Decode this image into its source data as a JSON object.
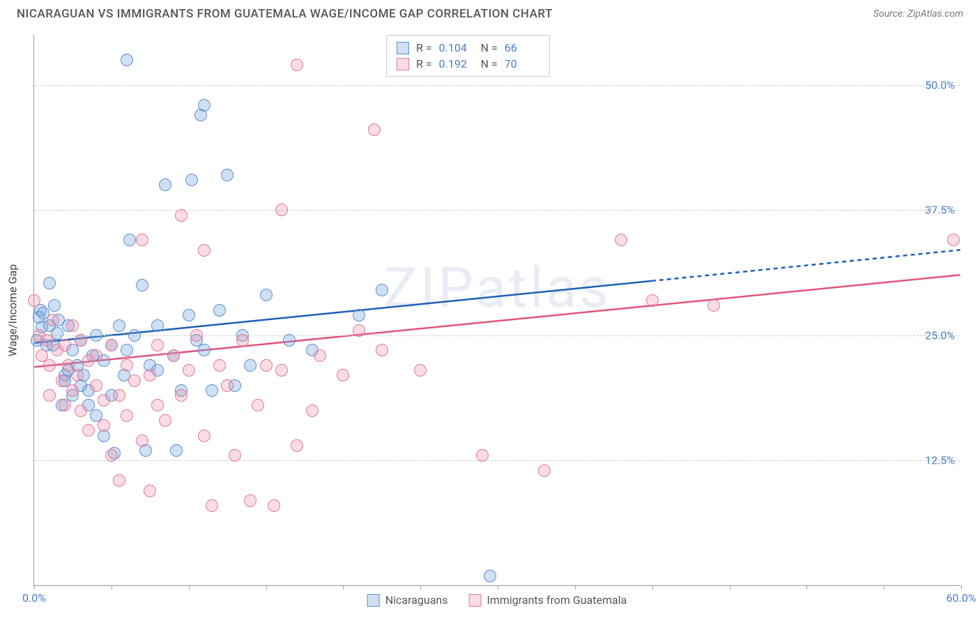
{
  "title": "NICARAGUAN VS IMMIGRANTS FROM GUATEMALA WAGE/INCOME GAP CORRELATION CHART",
  "source": "Source: ZipAtlas.com",
  "watermark": "ZIPatlas",
  "y_axis_title": "Wage/Income Gap",
  "chart": {
    "type": "scatter",
    "background_color": "#ffffff",
    "grid_color": "#cccccc",
    "xlim": [
      0,
      60
    ],
    "ylim": [
      0,
      55
    ],
    "y_ticks": [
      {
        "v": 12.5,
        "label": "12.5%"
      },
      {
        "v": 25.0,
        "label": "25.0%"
      },
      {
        "v": 37.5,
        "label": "37.5%"
      },
      {
        "v": 50.0,
        "label": "50.0%"
      }
    ],
    "x_ticks": [
      {
        "v": 0,
        "label": "0.0%"
      },
      {
        "v": 60,
        "label": "60.0%"
      }
    ],
    "x_tick_marks": [
      0,
      5,
      10,
      15,
      20,
      25,
      30,
      35,
      40,
      45,
      50,
      55,
      60
    ],
    "marker_radius": 9,
    "marker_border_width": 1.5,
    "series": [
      {
        "name": "Nicaraguans",
        "fill": "rgba(120,165,220,0.35)",
        "stroke": "#5a8fd0",
        "trend_color": "#1f5fb8",
        "trend_width": 2.5,
        "trend": {
          "x1": 0,
          "y1": 24.2,
          "x2": 60,
          "y2": 33.5,
          "solid_until": 40
        },
        "R": "0.104",
        "N": "66",
        "points": [
          [
            0.2,
            24.5
          ],
          [
            0.3,
            26.8
          ],
          [
            0.4,
            27.5
          ],
          [
            0.5,
            25.8
          ],
          [
            0.6,
            27.2
          ],
          [
            0.8,
            24.0
          ],
          [
            1.0,
            30.2
          ],
          [
            1.0,
            26.0
          ],
          [
            1.2,
            24.0
          ],
          [
            1.3,
            28.0
          ],
          [
            1.5,
            25.2
          ],
          [
            1.6,
            26.5
          ],
          [
            1.8,
            18.0
          ],
          [
            2.0,
            21.0
          ],
          [
            2.0,
            20.5
          ],
          [
            2.2,
            26.0
          ],
          [
            2.2,
            21.5
          ],
          [
            2.5,
            19.0
          ],
          [
            2.5,
            23.5
          ],
          [
            2.8,
            22.0
          ],
          [
            3.0,
            24.5
          ],
          [
            3.0,
            20.0
          ],
          [
            3.2,
            21.0
          ],
          [
            3.5,
            19.5
          ],
          [
            3.5,
            18.0
          ],
          [
            3.8,
            23.0
          ],
          [
            4.0,
            25.0
          ],
          [
            4.0,
            17.0
          ],
          [
            4.5,
            22.5
          ],
          [
            4.5,
            15.0
          ],
          [
            5.0,
            24.0
          ],
          [
            5.0,
            19.0
          ],
          [
            5.2,
            13.2
          ],
          [
            5.5,
            26.0
          ],
          [
            5.8,
            21.0
          ],
          [
            6.0,
            23.5
          ],
          [
            6.0,
            52.5
          ],
          [
            6.2,
            34.5
          ],
          [
            6.5,
            25.0
          ],
          [
            7.0,
            30.0
          ],
          [
            7.2,
            13.5
          ],
          [
            7.5,
            22.0
          ],
          [
            8.0,
            26.0
          ],
          [
            8.0,
            21.5
          ],
          [
            8.5,
            40.0
          ],
          [
            9.0,
            23.0
          ],
          [
            9.2,
            13.5
          ],
          [
            9.5,
            19.5
          ],
          [
            10.0,
            27.0
          ],
          [
            10.2,
            40.5
          ],
          [
            10.5,
            24.5
          ],
          [
            10.8,
            47.0
          ],
          [
            11.0,
            48.0
          ],
          [
            11.0,
            23.5
          ],
          [
            11.5,
            19.5
          ],
          [
            12.0,
            27.5
          ],
          [
            12.5,
            41.0
          ],
          [
            13.0,
            20.0
          ],
          [
            13.5,
            25.0
          ],
          [
            14.0,
            22.0
          ],
          [
            15.0,
            29.0
          ],
          [
            16.5,
            24.5
          ],
          [
            18.0,
            23.5
          ],
          [
            21.0,
            27.0
          ],
          [
            22.5,
            29.5
          ],
          [
            29.5,
            1.0
          ]
        ]
      },
      {
        "name": "Immigrants from Guatemala",
        "fill": "rgba(235,140,165,0.30)",
        "stroke": "#e07a9a",
        "trend_color": "#e3537e",
        "trend_width": 2.5,
        "trend": {
          "x1": 0,
          "y1": 21.8,
          "x2": 60,
          "y2": 31.0,
          "solid_until": 60
        },
        "R": "0.192",
        "N": "70",
        "points": [
          [
            0.0,
            28.5
          ],
          [
            0.3,
            25.0
          ],
          [
            0.5,
            23.0
          ],
          [
            0.8,
            24.5
          ],
          [
            1.0,
            22.0
          ],
          [
            1.0,
            19.0
          ],
          [
            1.2,
            26.5
          ],
          [
            1.5,
            23.5
          ],
          [
            1.8,
            20.5
          ],
          [
            2.0,
            24.0
          ],
          [
            2.0,
            18.0
          ],
          [
            2.2,
            22.0
          ],
          [
            2.5,
            26.0
          ],
          [
            2.5,
            19.5
          ],
          [
            2.8,
            21.0
          ],
          [
            3.0,
            24.5
          ],
          [
            3.0,
            17.5
          ],
          [
            3.5,
            22.5
          ],
          [
            3.5,
            15.5
          ],
          [
            4.0,
            23.0
          ],
          [
            4.0,
            20.0
          ],
          [
            4.5,
            18.5
          ],
          [
            4.5,
            16.0
          ],
          [
            5.0,
            13.0
          ],
          [
            5.0,
            24.0
          ],
          [
            5.5,
            19.0
          ],
          [
            5.5,
            10.5
          ],
          [
            6.0,
            22.0
          ],
          [
            6.0,
            17.0
          ],
          [
            6.5,
            20.5
          ],
          [
            7.0,
            34.5
          ],
          [
            7.0,
            14.5
          ],
          [
            7.5,
            21.0
          ],
          [
            7.5,
            9.5
          ],
          [
            8.0,
            24.0
          ],
          [
            8.0,
            18.0
          ],
          [
            8.5,
            16.5
          ],
          [
            9.0,
            23.0
          ],
          [
            9.5,
            37.0
          ],
          [
            9.5,
            19.0
          ],
          [
            10.0,
            21.5
          ],
          [
            10.5,
            25.0
          ],
          [
            11.0,
            33.5
          ],
          [
            11.0,
            15.0
          ],
          [
            11.5,
            8.0
          ],
          [
            12.0,
            22.0
          ],
          [
            12.5,
            20.0
          ],
          [
            13.0,
            13.0
          ],
          [
            13.5,
            24.5
          ],
          [
            14.0,
            8.5
          ],
          [
            14.5,
            18.0
          ],
          [
            15.0,
            22.0
          ],
          [
            15.5,
            8.0
          ],
          [
            16.0,
            21.5
          ],
          [
            16.0,
            37.5
          ],
          [
            17.0,
            52.0
          ],
          [
            17.0,
            14.0
          ],
          [
            18.0,
            17.5
          ],
          [
            18.5,
            23.0
          ],
          [
            20.0,
            21.0
          ],
          [
            21.0,
            25.5
          ],
          [
            22.0,
            45.5
          ],
          [
            22.5,
            23.5
          ],
          [
            25.0,
            21.5
          ],
          [
            29.0,
            13.0
          ],
          [
            33.0,
            11.5
          ],
          [
            38.0,
            34.5
          ],
          [
            40.0,
            28.5
          ],
          [
            44.0,
            28.0
          ],
          [
            59.5,
            34.5
          ]
        ]
      }
    ]
  },
  "legend": {
    "series1_label": "Nicaraguans",
    "series2_label": "Immigrants from Guatemala"
  }
}
